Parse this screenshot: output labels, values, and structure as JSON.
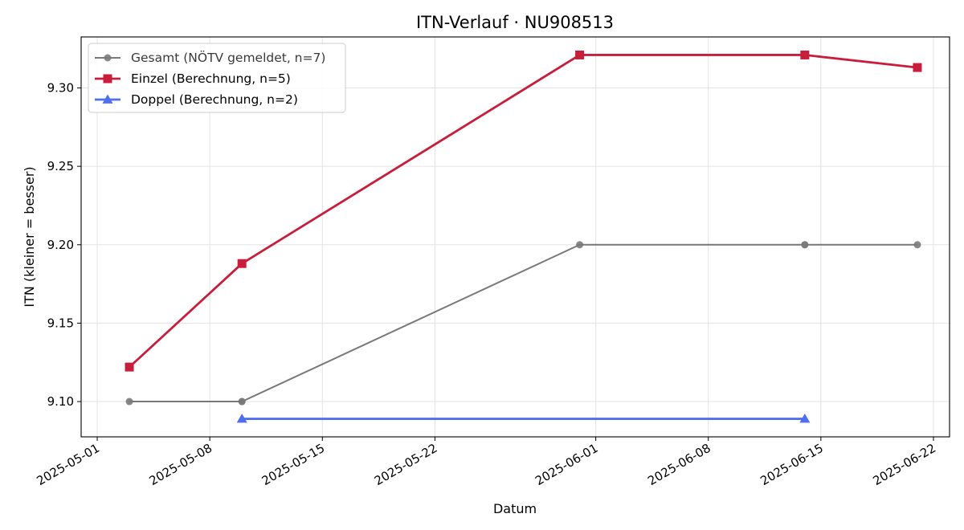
{
  "chart_data": {
    "type": "line",
    "title": "ITN-Verlauf · NU908513",
    "xlabel": "Datum",
    "ylabel": "ITN  (kleiner = besser)",
    "xlim": [
      "2025-04-30",
      "2025-06-23"
    ],
    "ylim": [
      9.0775,
      9.3325
    ],
    "x_ticks": [
      "2025-05-01",
      "2025-05-08",
      "2025-05-15",
      "2025-05-22",
      "2025-06-01",
      "2025-06-08",
      "2025-06-15",
      "2025-06-22"
    ],
    "y_ticks": [
      "9.10",
      "9.15",
      "9.20",
      "9.25",
      "9.30"
    ],
    "grid": true,
    "legend_position": "top-left",
    "series": [
      {
        "name": "Gesamt (NÖTV gemeldet, n=7)",
        "color": "#555555",
        "marker": "circle",
        "points": [
          {
            "x": "2025-05-03",
            "y": 9.1
          },
          {
            "x": "2025-05-10",
            "y": 9.1
          },
          {
            "x": "2025-05-10",
            "y": 9.1
          },
          {
            "x": "2025-05-31",
            "y": 9.2
          },
          {
            "x": "2025-06-14",
            "y": 9.2
          },
          {
            "x": "2025-06-14",
            "y": 9.2
          },
          {
            "x": "2025-06-21",
            "y": 9.2
          }
        ]
      },
      {
        "name": "Einzel (Berechnung, n=5)",
        "color": "#c81e3c",
        "marker": "square",
        "points": [
          {
            "x": "2025-05-03",
            "y": 9.122
          },
          {
            "x": "2025-05-10",
            "y": 9.188
          },
          {
            "x": "2025-05-31",
            "y": 9.321
          },
          {
            "x": "2025-06-14",
            "y": 9.321
          },
          {
            "x": "2025-06-21",
            "y": 9.313
          }
        ]
      },
      {
        "name": "Doppel (Berechnung, n=2)",
        "color": "#4f6ef0",
        "marker": "triangle",
        "points": [
          {
            "x": "2025-05-10",
            "y": 9.089
          },
          {
            "x": "2025-06-14",
            "y": 9.089
          }
        ]
      }
    ]
  }
}
